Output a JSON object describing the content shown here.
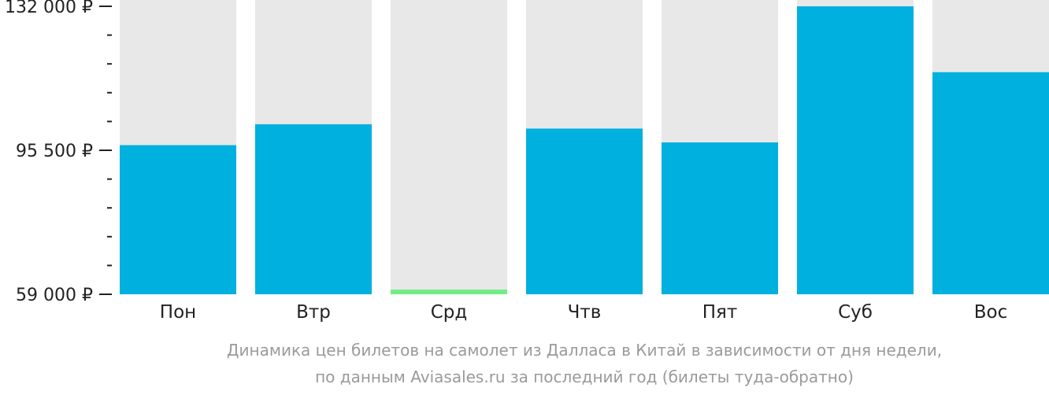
{
  "chart_data": {
    "type": "bar",
    "categories": [
      "Пон",
      "Втр",
      "Срд",
      "Чтв",
      "Пят",
      "Суб",
      "Вос"
    ],
    "values": [
      96800,
      102100,
      60200,
      101000,
      97500,
      132000,
      115300
    ],
    "ylim": [
      59000,
      132000
    ],
    "yticks": [
      {
        "value": 132000,
        "label": "132 000 ₽"
      },
      {
        "value": 95500,
        "label": "95 500 ₽"
      },
      {
        "value": 59000,
        "label": "59 000 ₽"
      }
    ],
    "minor_ticks_between": 4,
    "grid": false,
    "colors": {
      "bar": "#00b0de",
      "bar_min": "#72ec86",
      "bar_background": "#e8e8e8",
      "axis": "#222222"
    },
    "highlight_min": true
  },
  "caption": {
    "line1": "Динамика цен билетов на самолет из Далласа в Китай в зависимости от дня недели,",
    "line2": "по данным Aviasales.ru за последний год (билеты туда-обратно)"
  }
}
